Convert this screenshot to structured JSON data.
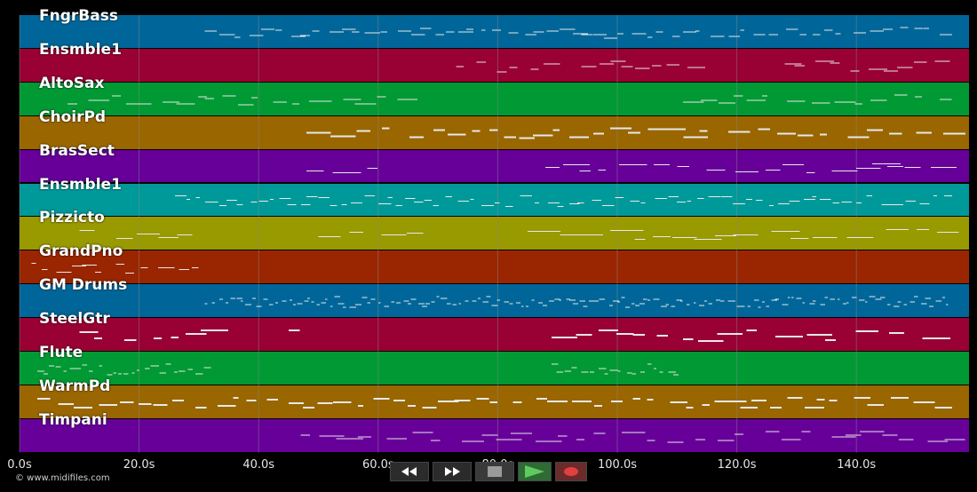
{
  "tracks": [
    {
      "label": "FngrBass",
      "color": "#006699"
    },
    {
      "label": "Ensmble1",
      "color": "#990033"
    },
    {
      "label": "AltoSax",
      "color": "#009933"
    },
    {
      "label": "ChoirPd",
      "color": "#996600"
    },
    {
      "label": "BrasSect",
      "color": "#660099"
    },
    {
      "label": "Ensmble1",
      "color": "#009999"
    },
    {
      "label": "Pizzicto",
      "color": "#999900"
    },
    {
      "label": "GrandPno",
      "color": "#992600"
    },
    {
      "label": "GM Drums",
      "color": "#006699"
    },
    {
      "label": "SteelGtr",
      "color": "#990033"
    },
    {
      "label": "Flute",
      "color": "#009933"
    },
    {
      "label": "WarmPd",
      "color": "#996600"
    },
    {
      "label": "Timpani",
      "color": "#660099"
    }
  ],
  "timeline": {
    "ticks": [
      "0.0s",
      "20.0s",
      "40.0s",
      "60.0s",
      "80.0s",
      "100.0s",
      "120.0s",
      "140.0s"
    ],
    "tick_values": [
      0,
      20,
      40,
      60,
      80,
      100,
      120,
      140
    ],
    "max_seconds": 158.8
  },
  "copyright": "© www.midifiles.com",
  "transport": {
    "rewind_icon": "rewind-icon",
    "fast_forward_icon": "fast-forward-icon",
    "stop_icon": "stop-icon",
    "play_icon": "play-icon",
    "record_icon": "record-icon"
  },
  "note_color": "#e8e8e8",
  "grid_color": "#8a8a8a"
}
